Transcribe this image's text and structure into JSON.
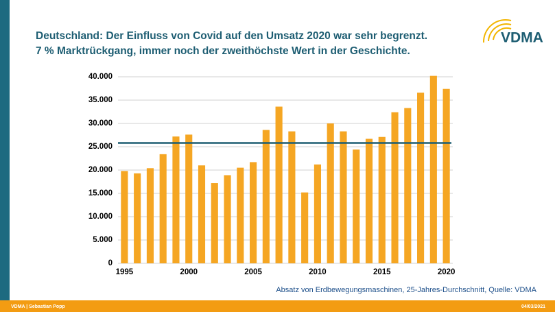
{
  "header": {
    "title_line1": "Deutschland: Der Einfluss von Covid auf den Umsatz 2020 war sehr begrenzt.",
    "title_line2": "7 % Marktrückgang, immer noch der zweithöchste Wert in der Geschichte.",
    "logo": "VDMA"
  },
  "chart_data": {
    "type": "bar",
    "x": [
      1995,
      1996,
      1997,
      1998,
      1999,
      2000,
      2001,
      2002,
      2003,
      2004,
      2005,
      2006,
      2007,
      2008,
      2009,
      2010,
      2011,
      2012,
      2013,
      2014,
      2015,
      2016,
      2017,
      2018,
      2019,
      2020
    ],
    "values": [
      19800,
      19300,
      20400,
      23400,
      27200,
      27600,
      21000,
      17200,
      18900,
      20500,
      21700,
      28600,
      33600,
      28300,
      15200,
      21200,
      30000,
      28300,
      24400,
      26700,
      27100,
      32400,
      33300,
      36600,
      40200,
      37400
    ],
    "color": "#f5a623",
    "average": 25800,
    "average_color": "#1d5d72",
    "xlim": [
      1994.5,
      2020.5
    ],
    "xticks": [
      1995,
      2000,
      2005,
      2010,
      2015,
      2020
    ],
    "ylim": [
      0,
      40000
    ],
    "yticks": [
      0,
      {
        "value": 5000,
        "label": "5.000"
      },
      {
        "value": 10000,
        "label": "10.000"
      },
      {
        "value": 15000,
        "label": "15.000"
      },
      {
        "value": 20000,
        "label": "20.000"
      },
      {
        "value": 25000,
        "label": "25.000"
      },
      {
        "value": 30000,
        "label": "30.000"
      },
      {
        "value": 35000,
        "label": "35.000"
      },
      {
        "value": 40000,
        "label": "40.000"
      }
    ],
    "grid": true,
    "note": "Absatz von Erdbewegungsmaschinen, 25-Jahres-Durchschnitt, Quelle: VDMA"
  },
  "footer": {
    "left": "VDMA | Sebastian Popp",
    "right": "04/03/2021"
  }
}
